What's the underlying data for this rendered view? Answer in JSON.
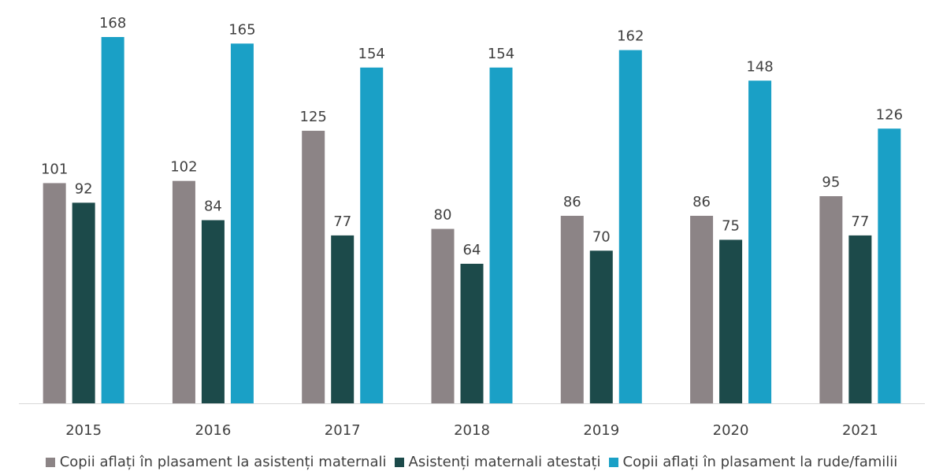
{
  "chart_data": {
    "type": "bar",
    "categories": [
      "2015",
      "2016",
      "2017",
      "2018",
      "2019",
      "2020",
      "2021"
    ],
    "series": [
      {
        "name": "Copii aflați în plasament la asistenți maternali",
        "color": "#8c8486",
        "values": [
          101,
          102,
          125,
          80,
          86,
          86,
          95
        ]
      },
      {
        "name": "Asistenți maternali atestați",
        "color": "#1c4a4a",
        "values": [
          92,
          84,
          77,
          64,
          70,
          75,
          77
        ]
      },
      {
        "name": "Copii aflați în plasament la rude/familii",
        "color": "#1aa0c6",
        "values": [
          168,
          165,
          154,
          154,
          162,
          148,
          126
        ]
      }
    ],
    "ylim": [
      0,
      180
    ],
    "grid": false,
    "legend_position": "bottom"
  }
}
